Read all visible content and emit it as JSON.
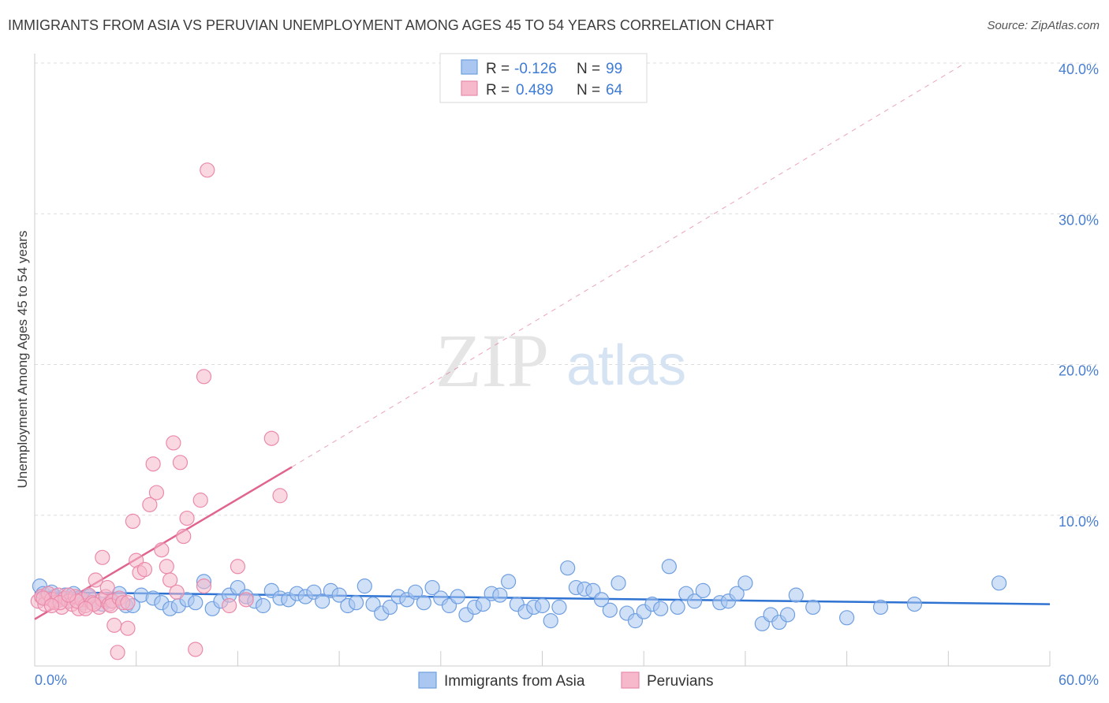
{
  "title": "IMMIGRANTS FROM ASIA VS PERUVIAN UNEMPLOYMENT AMONG AGES 45 TO 54 YEARS CORRELATION CHART",
  "source": "Source: ZipAtlas.com",
  "watermark": {
    "zip": "ZIP",
    "atlas": "atlas"
  },
  "colors": {
    "blue_fill": "#a9c7f0",
    "blue_stroke": "#6f9fe0",
    "blue_line": "#2e72d2",
    "pink_fill": "#f6b8cb",
    "pink_stroke": "#ea8aab",
    "pink_line": "#e0648f",
    "grid": "#dddddd",
    "axis_text": "#4a7fd0"
  },
  "chart_data": {
    "type": "scatter",
    "title": "IMMIGRANTS FROM ASIA VS PERUVIAN UNEMPLOYMENT AMONG AGES 45 TO 54 YEARS CORRELATION CHART",
    "xlabel": "",
    "ylabel": "Unemployment Among Ages 45 to 54 years",
    "xlim": [
      0,
      60
    ],
    "ylim": [
      0,
      40
    ],
    "x_tick_labels": [
      "0.0%",
      "60.0%"
    ],
    "y_ticks": [
      {
        "value": 10,
        "label": "10.0%"
      },
      {
        "value": 20,
        "label": "20.0%"
      },
      {
        "value": 30,
        "label": "30.0%"
      },
      {
        "value": 40,
        "label": "40.0%"
      }
    ],
    "legend": {
      "entries": [
        {
          "r_label": "R =",
          "r_value": "-0.126",
          "n_label": "N =",
          "n_value": "99"
        },
        {
          "r_label": "R =",
          "r_value": "0.489",
          "n_label": "N =",
          "n_value": "64"
        }
      ]
    },
    "series": [
      {
        "name": "Immigrants from Asia",
        "color": "blue",
        "trend": {
          "x": [
            0,
            60
          ],
          "y": [
            4.9,
            4.1
          ],
          "style": "solid"
        },
        "points": [
          [
            0.3,
            5.3
          ],
          [
            0.5,
            4.8
          ],
          [
            0.7,
            4.5
          ],
          [
            1.0,
            4.9
          ],
          [
            1.2,
            4.6
          ],
          [
            1.5,
            4.4
          ],
          [
            1.8,
            4.7
          ],
          [
            2.0,
            4.3
          ],
          [
            2.3,
            4.8
          ],
          [
            2.6,
            4.5
          ],
          [
            2.9,
            4.2
          ],
          [
            3.2,
            4.6
          ],
          [
            3.5,
            4.4
          ],
          [
            4.0,
            4.1
          ],
          [
            4.5,
            4.3
          ],
          [
            5.0,
            4.8
          ],
          [
            5.4,
            4.0
          ],
          [
            5.8,
            4.0
          ],
          [
            6.3,
            4.7
          ],
          [
            7.0,
            4.5
          ],
          [
            7.5,
            4.2
          ],
          [
            8.0,
            3.8
          ],
          [
            8.5,
            4.0
          ],
          [
            9.0,
            4.4
          ],
          [
            9.5,
            4.2
          ],
          [
            10.0,
            5.6
          ],
          [
            10.5,
            3.8
          ],
          [
            11.0,
            4.3
          ],
          [
            11.5,
            4.7
          ],
          [
            12.0,
            5.2
          ],
          [
            12.5,
            4.6
          ],
          [
            13.0,
            4.3
          ],
          [
            13.5,
            4.0
          ],
          [
            14.0,
            5.0
          ],
          [
            14.5,
            4.5
          ],
          [
            15.0,
            4.4
          ],
          [
            15.5,
            4.8
          ],
          [
            16.0,
            4.6
          ],
          [
            16.5,
            4.9
          ],
          [
            17.0,
            4.3
          ],
          [
            17.5,
            5.0
          ],
          [
            18.0,
            4.7
          ],
          [
            18.5,
            4.0
          ],
          [
            19.0,
            4.2
          ],
          [
            19.5,
            5.3
          ],
          [
            20.0,
            4.1
          ],
          [
            20.5,
            3.5
          ],
          [
            21.0,
            3.9
          ],
          [
            21.5,
            4.6
          ],
          [
            22.0,
            4.4
          ],
          [
            22.5,
            4.9
          ],
          [
            23.0,
            4.2
          ],
          [
            23.5,
            5.2
          ],
          [
            24.0,
            4.5
          ],
          [
            24.5,
            4.0
          ],
          [
            25.0,
            4.6
          ],
          [
            25.5,
            3.4
          ],
          [
            26.0,
            3.9
          ],
          [
            26.5,
            4.1
          ],
          [
            27.0,
            4.8
          ],
          [
            27.5,
            4.7
          ],
          [
            28.0,
            5.6
          ],
          [
            28.5,
            4.1
          ],
          [
            29.0,
            3.6
          ],
          [
            29.5,
            3.9
          ],
          [
            30.0,
            4.0
          ],
          [
            30.5,
            3.0
          ],
          [
            31.0,
            3.9
          ],
          [
            31.5,
            6.5
          ],
          [
            32.0,
            5.2
          ],
          [
            32.5,
            5.1
          ],
          [
            33.0,
            5.0
          ],
          [
            33.5,
            4.4
          ],
          [
            34.0,
            3.7
          ],
          [
            34.5,
            5.5
          ],
          [
            35.0,
            3.5
          ],
          [
            35.5,
            3.0
          ],
          [
            36.0,
            3.6
          ],
          [
            36.5,
            4.1
          ],
          [
            37.0,
            3.8
          ],
          [
            37.5,
            6.6
          ],
          [
            38.0,
            3.9
          ],
          [
            38.5,
            4.8
          ],
          [
            39.0,
            4.3
          ],
          [
            39.5,
            5.0
          ],
          [
            40.5,
            4.2
          ],
          [
            41.0,
            4.3
          ],
          [
            41.5,
            4.8
          ],
          [
            42.0,
            5.5
          ],
          [
            43.0,
            2.8
          ],
          [
            43.5,
            3.4
          ],
          [
            44.0,
            2.9
          ],
          [
            44.5,
            3.4
          ],
          [
            45.0,
            4.7
          ],
          [
            46.0,
            3.9
          ],
          [
            48.0,
            3.2
          ],
          [
            50.0,
            3.9
          ],
          [
            52.0,
            4.1
          ],
          [
            57.0,
            5.5
          ]
        ]
      },
      {
        "name": "Peruvians",
        "color": "pink",
        "trend": {
          "x": [
            0,
            15.2
          ],
          "y": [
            3.1,
            13.2
          ],
          "style": "solid",
          "extended_dashed_to": [
            55,
            40
          ]
        },
        "points": [
          [
            0.2,
            4.3
          ],
          [
            0.4,
            4.6
          ],
          [
            0.6,
            4.1
          ],
          [
            0.8,
            4.8
          ],
          [
            1.0,
            4.4
          ],
          [
            1.2,
            4.2
          ],
          [
            1.4,
            4.7
          ],
          [
            1.6,
            3.9
          ],
          [
            1.8,
            4.5
          ],
          [
            2.0,
            4.3
          ],
          [
            2.2,
            4.1
          ],
          [
            2.4,
            4.6
          ],
          [
            2.6,
            3.8
          ],
          [
            2.8,
            4.4
          ],
          [
            3.0,
            4.0
          ],
          [
            3.2,
            4.7
          ],
          [
            3.4,
            4.2
          ],
          [
            3.6,
            5.7
          ],
          [
            3.8,
            3.9
          ],
          [
            4.0,
            4.4
          ],
          [
            4.2,
            4.6
          ],
          [
            4.4,
            4.1
          ],
          [
            4.6,
            4.3
          ],
          [
            4.0,
            7.2
          ],
          [
            4.3,
            5.2
          ],
          [
            4.5,
            4.0
          ],
          [
            4.7,
            2.7
          ],
          [
            4.9,
            0.9
          ],
          [
            5.0,
            4.5
          ],
          [
            5.2,
            4.2
          ],
          [
            5.5,
            2.5
          ],
          [
            5.8,
            9.6
          ],
          [
            6.0,
            7.0
          ],
          [
            6.2,
            6.2
          ],
          [
            6.5,
            6.4
          ],
          [
            6.8,
            10.7
          ],
          [
            7.0,
            13.4
          ],
          [
            7.2,
            11.5
          ],
          [
            7.5,
            7.7
          ],
          [
            7.8,
            6.6
          ],
          [
            8.0,
            5.7
          ],
          [
            8.2,
            14.8
          ],
          [
            8.4,
            4.9
          ],
          [
            8.6,
            13.5
          ],
          [
            8.8,
            8.6
          ],
          [
            9.0,
            9.8
          ],
          [
            9.5,
            1.1
          ],
          [
            9.8,
            11.0
          ],
          [
            10.0,
            19.2
          ],
          [
            10.0,
            5.3
          ],
          [
            10.2,
            32.9
          ],
          [
            11.5,
            4.0
          ],
          [
            12.0,
            6.6
          ],
          [
            12.5,
            4.4
          ],
          [
            14.0,
            15.1
          ],
          [
            14.5,
            11.3
          ],
          [
            1.5,
            4.2
          ],
          [
            2.5,
            4.3
          ],
          [
            3.5,
            4.1
          ],
          [
            5.5,
            4.2
          ],
          [
            0.5,
            4.5
          ],
          [
            1.0,
            4.0
          ],
          [
            2.0,
            4.7
          ],
          [
            3.0,
            3.8
          ]
        ]
      }
    ]
  },
  "bottom_legend": [
    {
      "label": "Immigrants from Asia",
      "color": "blue"
    },
    {
      "label": "Peruvians",
      "color": "pink"
    }
  ]
}
